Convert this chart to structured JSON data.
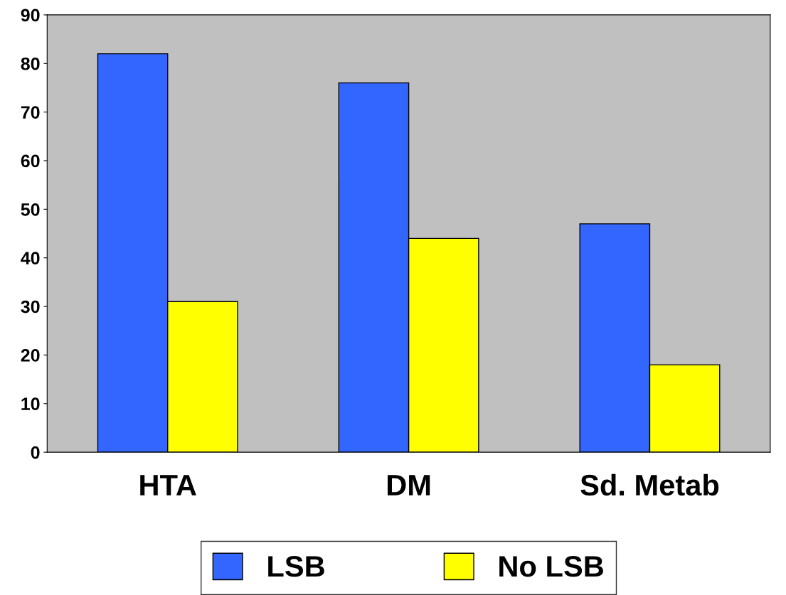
{
  "chart_data": {
    "type": "bar",
    "categories": [
      "HTA",
      "DM",
      "Sd. Metab"
    ],
    "series": [
      {
        "name": "LSB",
        "color": "#3366ff",
        "values": [
          82,
          76,
          47
        ]
      },
      {
        "name": "No LSB",
        "color": "#ffff00",
        "values": [
          31,
          44,
          18
        ]
      }
    ],
    "ylim": [
      0,
      90
    ],
    "yticks": [
      0,
      10,
      20,
      30,
      40,
      50,
      60,
      70,
      80,
      90
    ],
    "grid": false,
    "legend": "bottom"
  }
}
